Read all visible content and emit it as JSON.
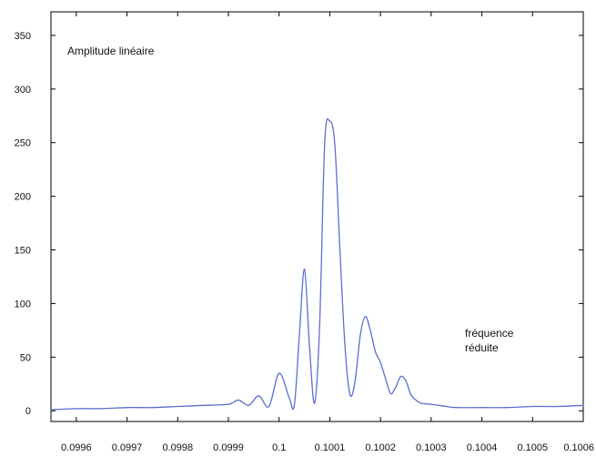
{
  "chart_data": {
    "type": "line",
    "title": "",
    "ylabel": "Amplitude linéaire",
    "xlabel": [
      "fréquence",
      "réduite"
    ],
    "xlim": [
      0.09955,
      0.1006
    ],
    "ylim": [
      -10,
      372
    ],
    "grid": false,
    "x_ticks": [
      0.0996,
      0.0997,
      0.0998,
      0.0999,
      0.1,
      0.1001,
      0.1002,
      0.1003,
      0.1004,
      0.1005,
      0.1006
    ],
    "x_tick_labels": [
      "0.0996",
      "0.0997",
      "0.0998",
      "0.0999",
      "0.1",
      "0.1001",
      "0.1002",
      "0.1003",
      "0.1004",
      "0.1005",
      "0.1006"
    ],
    "y_ticks": [
      0,
      50,
      100,
      150,
      200,
      250,
      300,
      350
    ],
    "y_tick_labels": [
      "0",
      "50",
      "100",
      "150",
      "200",
      "250",
      "300",
      "350"
    ],
    "line_color": "#5b6fd0",
    "series": [
      {
        "x": [
          0.09955,
          0.0996,
          0.09965,
          0.0997,
          0.09975,
          0.0998,
          0.09985,
          0.0999,
          0.09992,
          0.09994,
          0.09996,
          0.09998,
          0.1,
          0.10002,
          0.10003,
          0.10004,
          0.10005,
          0.10006,
          0.10007,
          0.10008,
          0.10009,
          0.1001,
          0.10011,
          0.10012,
          0.10013,
          0.10014,
          0.10015,
          0.10016,
          0.10017,
          0.10018,
          0.10019,
          0.1002,
          0.10021,
          0.10022,
          0.10023,
          0.10024,
          0.10025,
          0.10026,
          0.10027,
          0.10028,
          0.1003,
          0.10033,
          0.10035,
          0.1004,
          0.10045,
          0.1005,
          0.10055,
          0.1006
        ],
        "y": [
          1,
          2,
          2,
          3,
          3,
          4,
          5,
          6,
          10,
          5,
          14,
          4,
          35,
          12,
          5,
          70,
          132,
          60,
          7,
          80,
          250,
          270,
          248,
          150,
          60,
          15,
          28,
          70,
          88,
          75,
          55,
          45,
          30,
          16,
          22,
          32,
          28,
          15,
          10,
          7,
          6,
          4,
          3,
          3,
          3,
          4,
          4,
          5
        ]
      }
    ]
  }
}
